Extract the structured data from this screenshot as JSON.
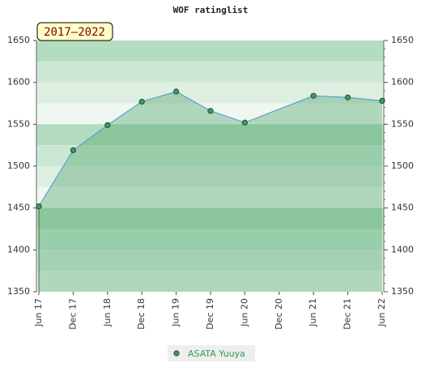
{
  "chart_data": {
    "type": "area",
    "title": "WOF ratinglist",
    "annotation": "2017–2022",
    "categories": [
      "Jun 17",
      "Dec 17",
      "Jun 18",
      "Dec 18",
      "Jun 19",
      "Dec 19",
      "Jun 20",
      "Dec 20",
      "Jun 21",
      "Dec 21",
      "Jun 22"
    ],
    "series": [
      {
        "name": "ASATA Yuuya",
        "color": "#3c9a5a",
        "x": [
          "Jun 17",
          "Dec 17",
          "Jun 18",
          "Dec 18",
          "Jun 19",
          "Dec 19",
          "Jun 20",
          "Jun 21",
          "Dec 21",
          "Jun 22"
        ],
        "values": [
          1452,
          1519,
          1549,
          1577,
          1589,
          1566,
          1552,
          1584,
          1582,
          1578
        ]
      }
    ],
    "ylim": [
      1350,
      1650
    ],
    "yticks": [
      1350,
      1400,
      1450,
      1500,
      1550,
      1600,
      1650
    ],
    "y2lim": [
      1350,
      1650
    ],
    "y2ticks": [
      1350,
      1400,
      1450,
      1500,
      1550,
      1600,
      1650
    ]
  }
}
